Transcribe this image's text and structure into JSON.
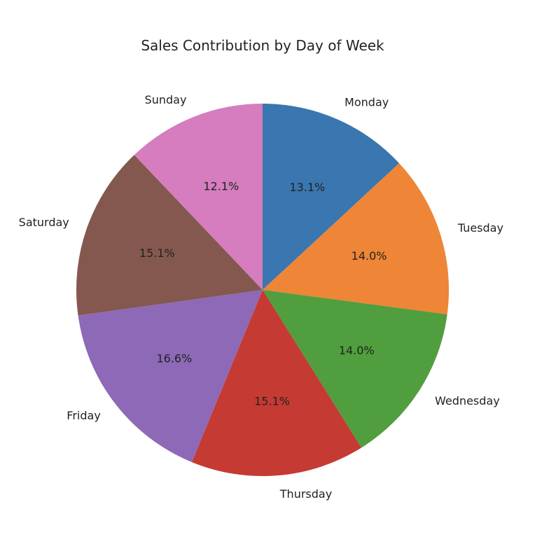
{
  "chart_data": {
    "type": "pie",
    "title": "Sales Contribution by Day of Week",
    "start_angle_deg": 90,
    "direction": "clockwise",
    "slices": [
      {
        "label": "Monday",
        "value": 13.1,
        "pct_label": "13.1%",
        "color": "#3a76af"
      },
      {
        "label": "Tuesday",
        "value": 14.0,
        "pct_label": "14.0%",
        "color": "#ef8536"
      },
      {
        "label": "Wednesday",
        "value": 14.0,
        "pct_label": "14.0%",
        "color": "#519e3e"
      },
      {
        "label": "Thursday",
        "value": 15.1,
        "pct_label": "15.1%",
        "color": "#c53a32"
      },
      {
        "label": "Friday",
        "value": 16.6,
        "pct_label": "16.6%",
        "color": "#8d69b8"
      },
      {
        "label": "Saturday",
        "value": 15.1,
        "pct_label": "15.1%",
        "color": "#84584e"
      },
      {
        "label": "Sunday",
        "value": 12.1,
        "pct_label": "12.1%",
        "color": "#d57dbe"
      }
    ]
  }
}
